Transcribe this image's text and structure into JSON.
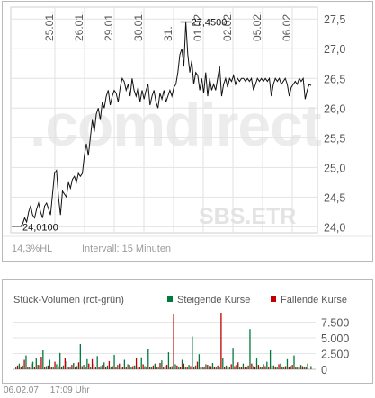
{
  "price_chart": {
    "type": "line",
    "title": "",
    "x_tick_labels": [
      "25.01.",
      "26.01.",
      "29.01.",
      "30.01.",
      "31.",
      "01.02.",
      "02.02.",
      "05.02.",
      "06.02."
    ],
    "y_ticks": [
      24.0,
      24.5,
      25.0,
      25.5,
      26.0,
      26.5,
      27.0,
      27.5
    ],
    "y_tick_labels": [
      "24,0",
      "24,5",
      "25,0",
      "25,5",
      "26,0",
      "26,5",
      "27,0",
      "27,5"
    ],
    "ylim": [
      23.9,
      27.7
    ],
    "low_label": "24,0100",
    "high_label": "27,4500",
    "low_value": 24.01,
    "high_value": 27.45,
    "watermark_logo": ".comdirect",
    "source_label": "SBS.ETR",
    "change_label": "14,3%HL",
    "interval_label": "Intervall: 15 Minuten",
    "chart_data": {
      "type": "line",
      "series": [
        {
          "values": [
            24.01,
            24.05,
            24.15,
            24.08,
            24.25,
            24.35,
            24.2,
            24.15,
            24.3,
            24.4,
            24.25,
            24.15,
            24.35,
            24.4,
            24.3,
            24.2,
            24.55,
            24.9,
            24.95,
            24.5,
            24.2,
            24.6,
            24.55,
            24.5,
            24.75,
            24.65,
            24.8,
            24.85,
            24.75,
            24.9,
            24.85,
            24.9,
            25.2,
            25.4,
            25.2,
            25.5,
            25.8,
            25.6,
            25.9,
            26.0,
            25.8,
            26.1,
            26.0,
            26.2,
            26.3,
            26.05,
            26.2,
            26.3,
            26.25,
            26.1,
            26.35,
            26.5,
            26.45,
            26.3,
            26.4,
            26.2,
            26.5,
            26.3,
            26.2,
            26.35,
            26.1,
            26.3,
            26.15,
            26.3,
            26.4,
            26.05,
            26.2,
            26.3,
            26.1,
            26.0,
            26.25,
            26.15,
            26.3,
            26.1,
            26.2,
            26.3,
            26.2,
            26.35,
            26.4,
            26.6,
            26.9,
            27.0,
            26.7,
            27.45,
            26.9,
            26.6,
            26.8,
            26.4,
            26.6,
            26.55,
            26.3,
            26.5,
            26.25,
            26.6,
            26.2,
            26.5,
            26.3,
            26.4,
            26.3,
            26.5,
            26.7,
            26.2,
            26.4,
            26.5,
            26.35,
            26.5,
            26.45,
            26.55,
            26.4,
            26.5,
            26.45,
            26.5,
            26.5,
            26.45,
            26.5,
            26.45,
            26.5,
            26.3,
            26.4,
            26.5,
            26.45,
            26.5,
            26.45,
            26.5,
            26.45,
            26.5,
            26.2,
            26.4,
            26.5,
            26.45,
            26.5,
            26.4,
            26.45,
            26.5,
            26.4,
            26.2,
            26.35,
            26.4,
            26.45,
            26.4,
            26.5,
            26.45,
            26.5,
            26.15,
            26.3,
            26.4,
            26.38
          ]
        }
      ],
      "ylim": [
        23.9,
        27.7
      ]
    }
  },
  "volume_chart": {
    "title": "Stück-Volumen (rot-grün)",
    "legend_rising": "Steigende Kurse",
    "legend_falling": "Fallende Kurse",
    "rising_color": "#007a3d",
    "falling_color": "#c00000",
    "y_ticks": [
      0,
      2500,
      5000,
      7500
    ],
    "y_tick_labels": [
      "0",
      "2.500",
      "5.000",
      "7.500"
    ],
    "ylim": [
      0,
      9000
    ],
    "chart_data": {
      "type": "bar",
      "series": [
        {
          "values": [
            300,
            900,
            600,
            2200,
            400,
            1200,
            1800,
            700,
            3000,
            500,
            1500,
            400,
            800,
            2600,
            600,
            1300,
            300,
            1000,
            500,
            4000,
            700,
            1600,
            300,
            900,
            2100,
            500,
            1100,
            600,
            300,
            2300,
            700,
            400,
            1500,
            800,
            300,
            600,
            400,
            1900,
            500,
            3200,
            400,
            900,
            300,
            1400,
            600,
            2700,
            500,
            800,
            300,
            1500,
            400,
            700,
            5200,
            600,
            2400,
            300,
            800,
            500,
            1000,
            400,
            300,
            1800,
            600,
            400,
            3400,
            700,
            300,
            900,
            400,
            6400,
            500,
            1700,
            300,
            800,
            1200,
            3000,
            600,
            400,
            900,
            300,
            1600,
            500,
            2200,
            400,
            700,
            300,
            900,
            500
          ]
        },
        {
          "values": [
            600,
            300,
            1500,
            400,
            900,
            300,
            700,
            2000,
            400,
            600,
            300,
            1200,
            500,
            300,
            1800,
            400,
            700,
            300,
            1100,
            500,
            300,
            900,
            1600,
            400,
            300,
            700,
            400,
            1300,
            500,
            300,
            900,
            400,
            300,
            700,
            500,
            1800,
            300,
            800,
            400,
            300,
            600,
            300,
            1000,
            400,
            700,
            300,
            8700,
            600,
            300,
            900,
            400,
            500,
            300,
            1200,
            400,
            300,
            700,
            500,
            300,
            600,
            9000,
            400,
            300,
            800,
            500,
            1100,
            400,
            300,
            600,
            900,
            300,
            700,
            400,
            500,
            300,
            600,
            400,
            800,
            300,
            500,
            300,
            700,
            400,
            300,
            500,
            300
          ]
        }
      ],
      "ylim": [
        0,
        9000
      ]
    }
  },
  "footer": {
    "date": "06.02.07",
    "time": "17:09 Uhr"
  }
}
